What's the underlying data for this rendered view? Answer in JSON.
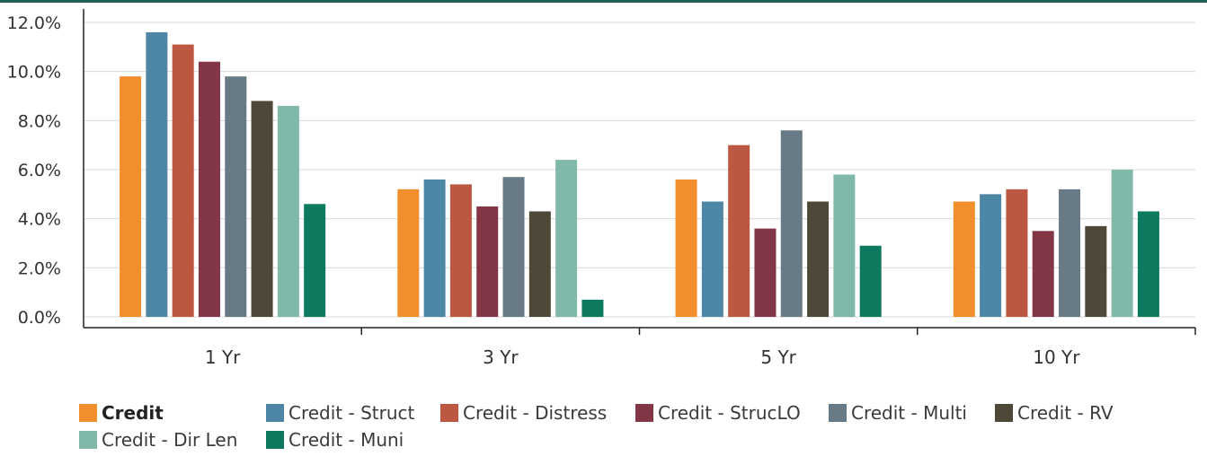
{
  "chart_data": {
    "type": "bar",
    "categories": [
      "1 Yr",
      "3 Yr",
      "5 Yr",
      "10 Yr"
    ],
    "ylim": [
      0,
      12
    ],
    "yticks": [
      "0.0%",
      "2.0%",
      "4.0%",
      "6.0%",
      "8.0%",
      "10.0%",
      "12.0%"
    ],
    "grid": true,
    "legend_position": "bottom",
    "series": [
      {
        "name": "Credit",
        "color": "#f28e2b",
        "bold": true,
        "values": [
          9.8,
          5.2,
          5.6,
          4.7
        ]
      },
      {
        "name": "Credit - Struct",
        "color": "#4e87a6",
        "values": [
          11.6,
          5.6,
          4.7,
          5.0
        ]
      },
      {
        "name": "Credit - Distress",
        "color": "#bc5742",
        "values": [
          11.1,
          5.4,
          7.0,
          5.2
        ]
      },
      {
        "name": "Credit - StrucLO",
        "color": "#823646",
        "values": [
          10.4,
          4.5,
          3.6,
          3.5
        ]
      },
      {
        "name": "Credit - Multi",
        "color": "#687a85",
        "values": [
          9.8,
          5.7,
          7.6,
          5.2
        ]
      },
      {
        "name": "Credit - RV",
        "color": "#4e4838",
        "values": [
          8.8,
          4.3,
          4.7,
          3.7
        ]
      },
      {
        "name": "Credit - Dir Len",
        "color": "#80b9aa",
        "values": [
          8.6,
          6.4,
          5.8,
          6.0
        ]
      },
      {
        "name": "Credit - Muni",
        "color": "#0d7a60",
        "values": [
          4.6,
          0.7,
          2.9,
          4.3
        ]
      }
    ]
  }
}
